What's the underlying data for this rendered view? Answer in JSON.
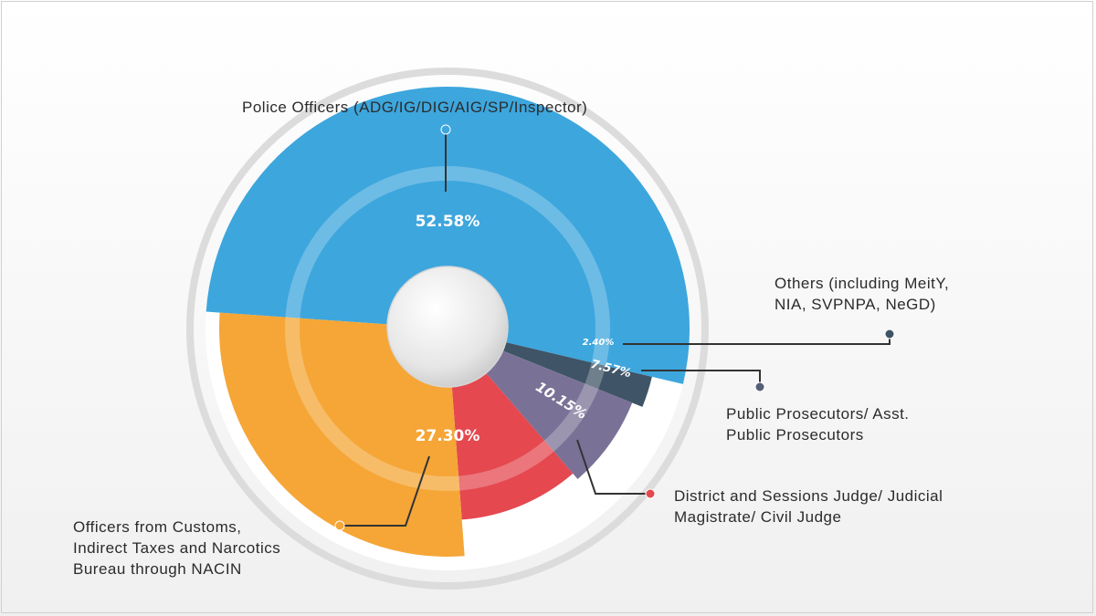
{
  "chart_data": {
    "type": "pie",
    "slices": [
      {
        "label": "Police Officers (ADG/IG/DIG/AIG/SP/Inspector)",
        "value": 52.58,
        "display": "52.58%",
        "color": "#3da6dd"
      },
      {
        "label": "Others (including MeitY,\nNIA, SVPNPA, NeGD)",
        "value": 2.4,
        "display": "2.40%",
        "color": "#3f5466"
      },
      {
        "label": "Public Prosecutors/ Asst.\nPublic Prosecutors",
        "value": 7.57,
        "display": "7.57%",
        "color": "#7a7296"
      },
      {
        "label": "District and Sessions Judge/ Judicial\nMagistrate/ Civil Judge",
        "value": 10.15,
        "display": "10.15%",
        "color": "#e5484f"
      },
      {
        "label": "Officers from Customs,\nIndirect Taxes and Narcotics\nBureau through NACIN",
        "value": 27.3,
        "display": "27.30%",
        "color": "#f5a636"
      }
    ]
  }
}
